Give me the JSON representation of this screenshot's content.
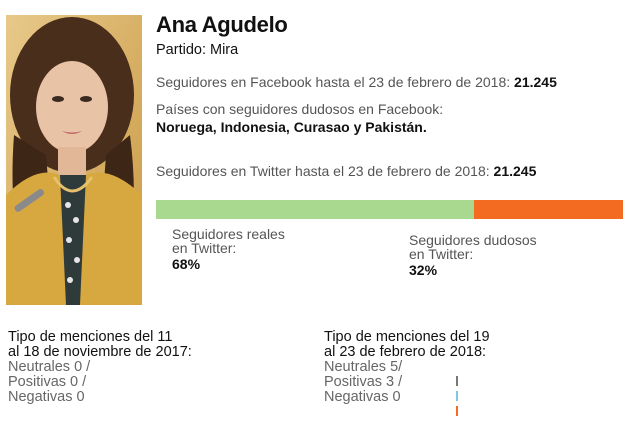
{
  "profile": {
    "name": "Ana Agudelo",
    "party": "Partido: Mira"
  },
  "facebook": {
    "followers_label": "Seguidores en Facebook hasta el 23 de febrero de 2018: ",
    "followers_value": "21.245",
    "dubious_label": "Países con seguidores dudosos en Facebook:",
    "dubious_countries": "Noruega, Indonesia, Curasao y Pakistán."
  },
  "twitter": {
    "followers_label": "Seguidores en Twitter hasta el 23 de febrero de 2018: ",
    "followers_value": "21.245",
    "real_label_1": "Seguidores reales",
    "real_label_2": "en Twitter:",
    "real_pct": "68%",
    "fake_label_1": "Seguidores dudosos",
    "fake_label_2": "en Twitter:",
    "fake_pct": "32%",
    "real_fraction": 0.68,
    "fake_fraction": 0.32,
    "real_color": "#a8d98e",
    "fake_color": "#f26b21"
  },
  "mentions_2017": {
    "title_1": "Tipo de menciones del 11",
    "title_2": "al 18 de noviembre de 2017:",
    "neutral": "Neutrales 0 /",
    "positive": "Positivas 0 /",
    "negative": "Negativas 0"
  },
  "mentions_2018": {
    "title_1": "Tipo de menciones del 19",
    "title_2": "al 23 de febrero de 2018:",
    "neutral": "Neutrales 5/",
    "positive": "Positivas 3 /",
    "negative": "Negativas 0",
    "neutral_color": "#777777",
    "positive_color": "#7ec8e3",
    "negative_color": "#f26b21"
  }
}
